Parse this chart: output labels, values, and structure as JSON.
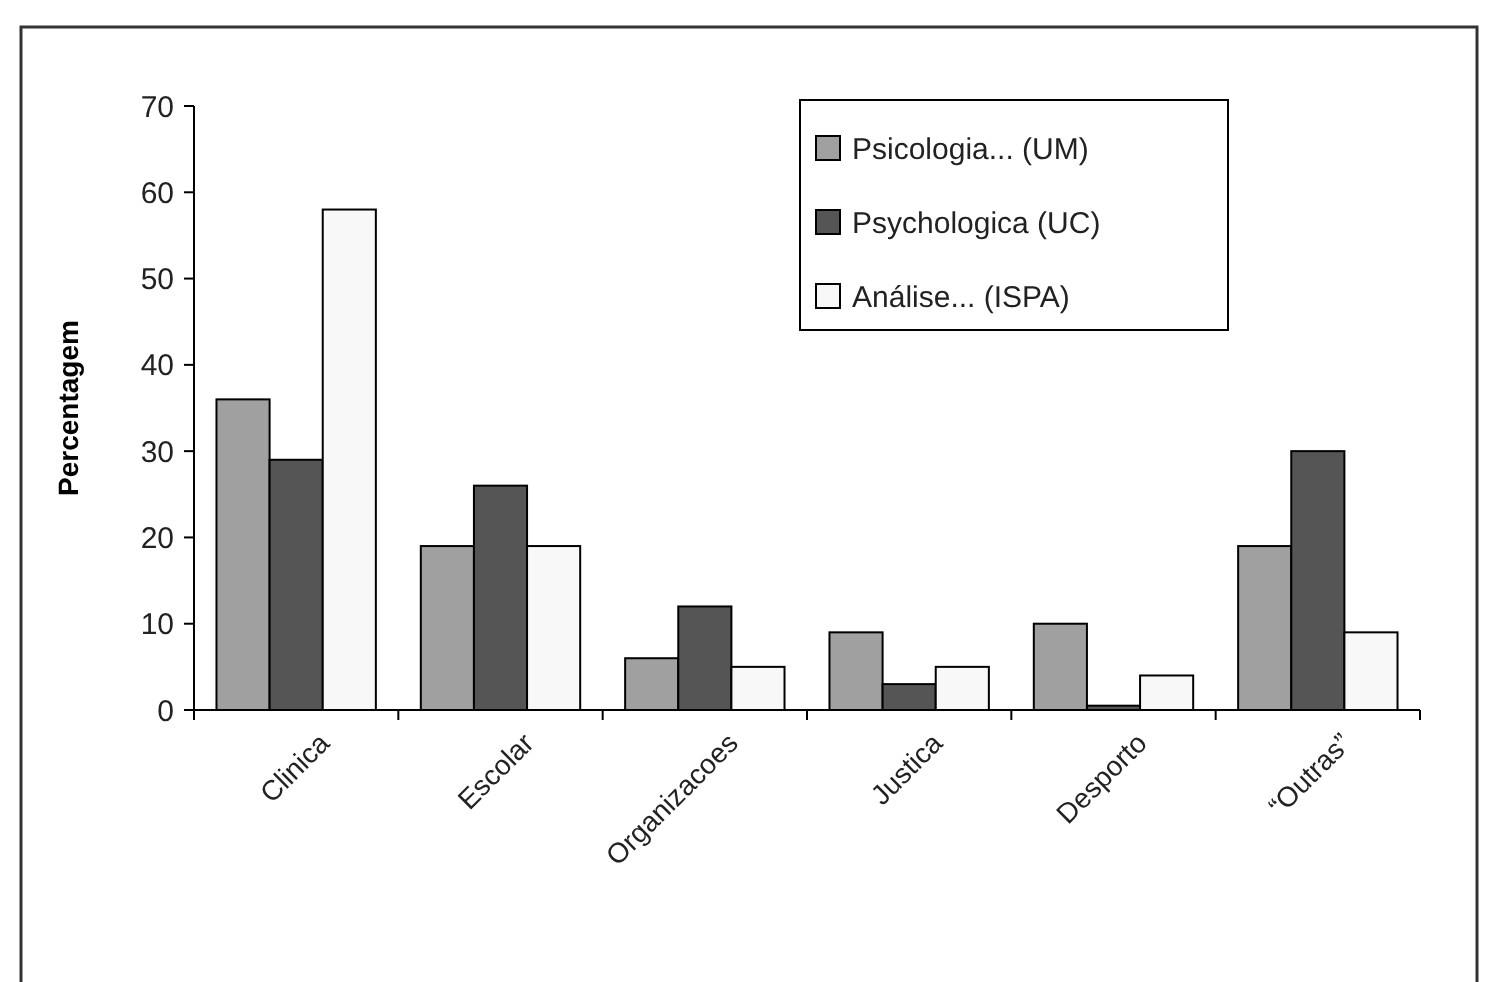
{
  "chart_data": {
    "type": "bar",
    "ylabel": "Percentagem",
    "categories": [
      "Clinica",
      "Escolar",
      "Organizacoes",
      "Justica",
      "Desporto",
      "“Outras”"
    ],
    "series": [
      {
        "name": "Psicologia... (UM)",
        "color": "#a0a0a0",
        "values": [
          36,
          19,
          6,
          9,
          10,
          19
        ]
      },
      {
        "name": "Psychologica (UC)",
        "color": "#555555",
        "values": [
          29,
          26,
          12,
          3,
          0.5,
          30
        ]
      },
      {
        "name": "Análise... (ISPA)",
        "color": "#f8f8f8",
        "values": [
          58,
          19,
          5,
          5,
          4,
          9
        ]
      }
    ],
    "ylim": [
      0,
      70
    ],
    "yticks": [
      0,
      10,
      20,
      30,
      40,
      50,
      60,
      70
    ],
    "grid": false,
    "legend": "top right"
  }
}
